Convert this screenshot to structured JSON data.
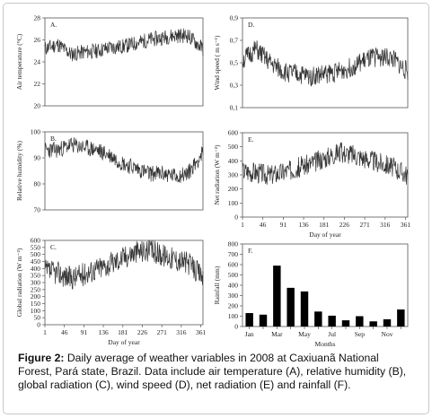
{
  "caption": {
    "label": "Figure 2:",
    "text": "Daily average of weather variables in 2008 at Caxiuanã National Forest, Pará state, Brazil. Data include air temperature (A), relative humidity (B), global radiation (C), wind speed (D), net radiation (E) and rainfall (F)."
  },
  "chart_data": [
    {
      "id": "A",
      "type": "line",
      "panel_label": "A.",
      "ylabel": "Air temperature (°C)",
      "xlabel": "",
      "xlim": [
        1,
        366
      ],
      "ylim": [
        20,
        28
      ],
      "yticks": [
        20,
        22,
        24,
        26,
        28
      ],
      "xticks": [],
      "series_seed": 11,
      "x": [
        1,
        31,
        61,
        91,
        121,
        151,
        181,
        211,
        241,
        271,
        301,
        331,
        366
      ],
      "y": [
        25.2,
        25.6,
        24.7,
        24.9,
        25.0,
        25.3,
        25.4,
        25.7,
        26.0,
        26.2,
        26.4,
        26.4,
        25.2
      ],
      "noise": 0.7
    },
    {
      "id": "B",
      "type": "line",
      "panel_label": "B.",
      "ylabel": "Relative humidity (%)",
      "xlabel": "",
      "xlim": [
        1,
        366
      ],
      "ylim": [
        70,
        100
      ],
      "yticks": [
        70,
        80,
        90,
        100
      ],
      "xticks": [],
      "series_seed": 23,
      "x": [
        1,
        31,
        61,
        91,
        121,
        151,
        181,
        211,
        241,
        271,
        301,
        331,
        366
      ],
      "y": [
        93,
        93,
        95,
        94,
        93,
        91,
        88,
        86,
        84,
        84,
        83,
        84,
        92
      ],
      "noise": 3.2
    },
    {
      "id": "C",
      "type": "line",
      "panel_label": "C.",
      "ylabel": "Global radiation (W m⁻²)",
      "xlabel": "Day of year",
      "xlim": [
        1,
        366
      ],
      "ylim": [
        0,
        600
      ],
      "yticks": [
        0,
        50,
        100,
        150,
        200,
        250,
        300,
        350,
        400,
        450,
        500,
        550,
        600
      ],
      "xticks": [
        1,
        46,
        91,
        136,
        181,
        226,
        271,
        316,
        361
      ],
      "series_seed": 37,
      "x": [
        1,
        31,
        61,
        91,
        121,
        151,
        181,
        211,
        241,
        271,
        301,
        331,
        366
      ],
      "y": [
        380,
        370,
        330,
        360,
        400,
        430,
        480,
        520,
        530,
        500,
        470,
        440,
        340
      ],
      "noise": 85
    },
    {
      "id": "D",
      "type": "line",
      "panel_label": "D.",
      "ylabel": "Wind speed ( m s⁻¹)",
      "xlabel": "",
      "xlim": [
        1,
        366
      ],
      "ylim": [
        0.1,
        0.9
      ],
      "yticks": [
        0.1,
        0.3,
        0.5,
        0.7,
        0.9
      ],
      "ytick_labels": [
        "0,1",
        "0,3",
        "0,5",
        "0,7",
        "0,9"
      ],
      "xticks": [],
      "series_seed": 51,
      "x": [
        1,
        31,
        61,
        91,
        121,
        151,
        181,
        211,
        241,
        271,
        301,
        331,
        366
      ],
      "y": [
        0.52,
        0.62,
        0.5,
        0.42,
        0.4,
        0.38,
        0.4,
        0.42,
        0.46,
        0.52,
        0.56,
        0.54,
        0.42
      ],
      "noise": 0.09
    },
    {
      "id": "E",
      "type": "line",
      "panel_label": "E.",
      "ylabel": "Net radiation (W m⁻²)",
      "xlabel": "Day of year",
      "xlim": [
        1,
        366
      ],
      "ylim": [
        0,
        600
      ],
      "yticks": [
        0,
        100,
        200,
        300,
        400,
        500,
        600
      ],
      "xticks": [
        1,
        46,
        91,
        136,
        181,
        226,
        271,
        316,
        361
      ],
      "series_seed": 67,
      "x": [
        1,
        31,
        61,
        91,
        121,
        151,
        181,
        211,
        241,
        271,
        301,
        331,
        366
      ],
      "y": [
        330,
        320,
        300,
        320,
        350,
        380,
        420,
        460,
        450,
        420,
        390,
        360,
        300
      ],
      "noise": 75
    },
    {
      "id": "F",
      "type": "bar",
      "panel_label": "F.",
      "ylabel": "Rainfall (mm)",
      "xlabel": "Months",
      "ylim": [
        0,
        800
      ],
      "yticks": [
        0,
        100,
        200,
        300,
        400,
        500,
        600,
        700,
        800
      ],
      "categories": [
        "Jan",
        "Feb",
        "Mar",
        "Apr",
        "May",
        "Jun",
        "Jul",
        "Aug",
        "Sep",
        "Oct",
        "Nov",
        "Dec"
      ],
      "tick_labels_shown": [
        "Jan",
        "Mar",
        "May",
        "Jul",
        "Sep",
        "Nov"
      ],
      "values": [
        130,
        115,
        590,
        375,
        340,
        145,
        105,
        60,
        100,
        50,
        70,
        165
      ],
      "bar_color": "#000000"
    }
  ]
}
